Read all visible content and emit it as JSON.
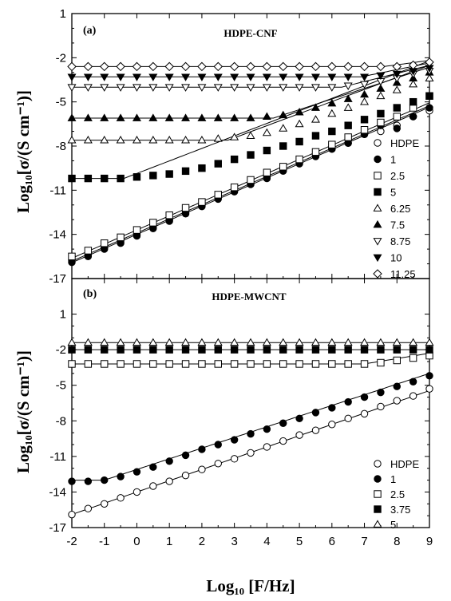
{
  "axes_common": {
    "xlabel": "Log₁₀ [F/Hz]",
    "ylabel": "Log₁₀[σ/(S cm⁻¹)]",
    "xlim": [
      -2,
      9
    ],
    "xticks": [
      -2,
      -1,
      0,
      1,
      2,
      3,
      4,
      5,
      6,
      7,
      8,
      9
    ]
  },
  "chart_data": [
    {
      "type": "scatter",
      "panel_label": "(a)",
      "title": "HDPE-CNF",
      "ylabel": "Log₁₀[σ/(S cm⁻¹)]",
      "ylim": [
        -17,
        1
      ],
      "yticks": [
        -17,
        -14,
        -11,
        -8,
        -5,
        -2,
        1
      ],
      "legend_position": "right",
      "fit_lines": true,
      "series": [
        {
          "name": "HDPE",
          "marker": "circle-open",
          "plateau": null,
          "onset": null,
          "slope": 0.96,
          "intercept": -13.9,
          "x": [
            -2,
            -1.5,
            -1,
            -0.5,
            0,
            0.5,
            1,
            1.5,
            2,
            2.5,
            3,
            3.5,
            4,
            4.5,
            5,
            5.5,
            6,
            6.5,
            7,
            7.5,
            8,
            8.5,
            9
          ],
          "y": [
            -15.8,
            -15.4,
            -14.9,
            -14.5,
            -14.0,
            -13.5,
            -13.0,
            -12.5,
            -12.0,
            -11.5,
            -11.0,
            -10.6,
            -10.1,
            -9.6,
            -9.1,
            -8.7,
            -8.2,
            -7.8,
            -7.2,
            -7.0,
            -6.6,
            -6.0,
            -5.6
          ]
        },
        {
          "name": "1",
          "marker": "circle-filled",
          "plateau": null,
          "onset": null,
          "slope": 0.96,
          "intercept": -14.0,
          "x": [
            -2,
            -1.5,
            -1,
            -0.5,
            0,
            0.5,
            1,
            1.5,
            2,
            2.5,
            3,
            3.5,
            4,
            4.5,
            5,
            5.5,
            6,
            6.5,
            7,
            7.5,
            8,
            8.5,
            9
          ],
          "y": [
            -15.9,
            -15.5,
            -15.0,
            -14.6,
            -14.1,
            -13.6,
            -13.1,
            -12.6,
            -12.1,
            -11.6,
            -11.1,
            -10.6,
            -10.2,
            -9.7,
            -9.2,
            -8.7,
            -8.2,
            -7.8,
            -7.2,
            -6.6,
            -6.8,
            -6.0,
            -5.4
          ]
        },
        {
          "name": "2.5",
          "marker": "square-open",
          "plateau": null,
          "onset": null,
          "slope": 0.96,
          "intercept": -13.7,
          "x": [
            -2,
            -1.5,
            -1,
            -0.5,
            0,
            0.5,
            1,
            1.5,
            2,
            2.5,
            3,
            3.5,
            4,
            4.5,
            5,
            5.5,
            6,
            6.5,
            7,
            7.5,
            8,
            8.5,
            9
          ],
          "y": [
            -15.5,
            -15.1,
            -14.6,
            -14.2,
            -13.7,
            -13.2,
            -12.7,
            -12.2,
            -11.8,
            -11.3,
            -10.8,
            -10.3,
            -9.8,
            -9.4,
            -8.9,
            -8.4,
            -7.9,
            -7.4,
            -6.9,
            -6.4,
            -6.0,
            -5.4,
            -4.6
          ]
        },
        {
          "name": "5",
          "marker": "square-filled",
          "plateau": -10.2,
          "onset": -0.4,
          "slope": 0.85,
          "intercept": null,
          "x": [
            -2,
            -1.5,
            -1,
            -0.5,
            0,
            0.5,
            1,
            1.5,
            2,
            2.5,
            3,
            3.5,
            4,
            4.5,
            5,
            5.5,
            6,
            6.5,
            7,
            7.5,
            8,
            8.5,
            9
          ],
          "y": [
            -10.2,
            -10.2,
            -10.2,
            -10.2,
            -10.1,
            -10.0,
            -9.9,
            -9.7,
            -9.5,
            -9.2,
            -8.9,
            -8.6,
            -8.3,
            -8.0,
            -7.7,
            -7.3,
            -7.0,
            -6.6,
            -6.2,
            -5.8,
            -5.4,
            -5.0,
            -4.6
          ]
        },
        {
          "name": "6.25",
          "marker": "triangle-open",
          "plateau": -7.6,
          "onset": 2.8,
          "slope": 0.82,
          "intercept": null,
          "x": [
            -2,
            -1.5,
            -1,
            -0.5,
            0,
            0.5,
            1,
            1.5,
            2,
            2.5,
            3,
            3.5,
            4,
            4.5,
            5,
            5.5,
            6,
            6.5,
            7,
            7.5,
            8,
            8.5,
            9
          ],
          "y": [
            -7.6,
            -7.6,
            -7.6,
            -7.6,
            -7.6,
            -7.6,
            -7.6,
            -7.6,
            -7.6,
            -7.5,
            -7.4,
            -7.3,
            -7.1,
            -6.8,
            -6.5,
            -6.2,
            -5.8,
            -5.4,
            -5.0,
            -4.6,
            -4.2,
            -3.8,
            -3.4
          ]
        },
        {
          "name": "7.5",
          "marker": "triangle-filled",
          "plateau": -6.1,
          "onset": 4.2,
          "slope": 0.72,
          "intercept": null,
          "x": [
            -2,
            -1.5,
            -1,
            -0.5,
            0,
            0.5,
            1,
            1.5,
            2,
            2.5,
            3,
            3.5,
            4,
            4.5,
            5,
            5.5,
            6,
            6.5,
            7,
            7.5,
            8,
            8.5,
            9
          ],
          "y": [
            -6.1,
            -6.1,
            -6.1,
            -6.1,
            -6.1,
            -6.1,
            -6.1,
            -6.1,
            -6.1,
            -6.1,
            -6.1,
            -6.1,
            -6.0,
            -5.9,
            -5.7,
            -5.4,
            -5.1,
            -4.8,
            -4.5,
            -4.1,
            -3.7,
            -3.4,
            -3.0
          ]
        },
        {
          "name": "8.75",
          "marker": "triangle-down-open",
          "plateau": -4.0,
          "onset": 6.3,
          "slope": 0.55,
          "intercept": null,
          "x": [
            -2,
            -1.5,
            -1,
            -0.5,
            0,
            0.5,
            1,
            1.5,
            2,
            2.5,
            3,
            3.5,
            4,
            4.5,
            5,
            5.5,
            6,
            6.5,
            7,
            7.5,
            8,
            8.5,
            9
          ],
          "y": [
            -4.0,
            -4.0,
            -4.0,
            -4.0,
            -4.0,
            -4.0,
            -4.0,
            -4.0,
            -4.0,
            -4.0,
            -4.0,
            -4.0,
            -4.0,
            -4.0,
            -4.0,
            -4.0,
            -4.0,
            -3.9,
            -3.8,
            -3.6,
            -3.4,
            -3.1,
            -2.9
          ]
        },
        {
          "name": "10",
          "marker": "triangle-down-filled",
          "plateau": -3.3,
          "onset": 6.9,
          "slope": 0.45,
          "intercept": null,
          "x": [
            -2,
            -1.5,
            -1,
            -0.5,
            0,
            0.5,
            1,
            1.5,
            2,
            2.5,
            3,
            3.5,
            4,
            4.5,
            5,
            5.5,
            6,
            6.5,
            7,
            7.5,
            8,
            8.5,
            9
          ],
          "y": [
            -3.3,
            -3.3,
            -3.3,
            -3.3,
            -3.3,
            -3.3,
            -3.3,
            -3.3,
            -3.3,
            -3.3,
            -3.3,
            -3.3,
            -3.3,
            -3.3,
            -3.3,
            -3.3,
            -3.3,
            -3.3,
            -3.3,
            -3.2,
            -3.1,
            -2.9,
            -2.7
          ]
        },
        {
          "name": "11.25",
          "marker": "diamond-open",
          "plateau": -2.6,
          "onset": 7.6,
          "slope": 0.3,
          "intercept": null,
          "x": [
            -2,
            -1.5,
            -1,
            -0.5,
            0,
            0.5,
            1,
            1.5,
            2,
            2.5,
            3,
            3.5,
            4,
            4.5,
            5,
            5.5,
            6,
            6.5,
            7,
            7.5,
            8,
            8.5,
            9
          ],
          "y": [
            -2.6,
            -2.6,
            -2.6,
            -2.6,
            -2.6,
            -2.6,
            -2.6,
            -2.6,
            -2.6,
            -2.6,
            -2.6,
            -2.6,
            -2.6,
            -2.6,
            -2.6,
            -2.6,
            -2.6,
            -2.6,
            -2.6,
            -2.6,
            -2.6,
            -2.5,
            -2.3
          ]
        }
      ]
    },
    {
      "type": "scatter",
      "panel_label": "(b)",
      "title": "HDPE-MWCNT",
      "ylabel": "Log₁₀[σ/(S cm⁻¹)]",
      "ylim": [
        -17,
        4
      ],
      "yticks": [
        -17,
        -14,
        -11,
        -8,
        -5,
        -2,
        1
      ],
      "legend_position": "bottom-right",
      "fit_lines": true,
      "series": [
        {
          "name": "HDPE",
          "marker": "circle-open",
          "plateau": null,
          "onset": null,
          "slope": 0.95,
          "intercept": -14.0,
          "x": [
            -2,
            -1.5,
            -1,
            -0.5,
            0,
            0.5,
            1,
            1.5,
            2,
            2.5,
            3,
            3.5,
            4,
            4.5,
            5,
            5.5,
            6,
            6.5,
            7,
            7.5,
            8,
            8.5,
            9
          ],
          "y": [
            -15.9,
            -15.4,
            -15.0,
            -14.5,
            -14.0,
            -13.5,
            -13.1,
            -12.6,
            -12.1,
            -11.6,
            -11.2,
            -10.7,
            -10.2,
            -9.7,
            -9.2,
            -8.8,
            -8.3,
            -7.8,
            -7.4,
            -6.8,
            -6.3,
            -5.9,
            -5.3
          ]
        },
        {
          "name": "1",
          "marker": "circle-filled",
          "plateau": -13.0,
          "onset": -1.0,
          "slope": 0.9,
          "intercept": null,
          "x": [
            -2,
            -1.5,
            -1,
            -0.5,
            0,
            0.5,
            1,
            1.5,
            2,
            2.5,
            3,
            3.5,
            4,
            4.5,
            5,
            5.5,
            6,
            6.5,
            7,
            7.5,
            8,
            8.5,
            9
          ],
          "y": [
            -13.1,
            -13.1,
            -13.0,
            -12.7,
            -12.3,
            -11.9,
            -11.4,
            -10.9,
            -10.4,
            -10.0,
            -9.6,
            -9.1,
            -8.7,
            -8.2,
            -7.8,
            -7.3,
            -6.9,
            -6.4,
            -6.0,
            -5.6,
            -5.1,
            -4.7,
            -4.2
          ]
        },
        {
          "name": "2.5",
          "marker": "square-open",
          "plateau": -3.2,
          "onset": 7.0,
          "slope": 0.45,
          "intercept": null,
          "x": [
            -2,
            -1.5,
            -1,
            -0.5,
            0,
            0.5,
            1,
            1.5,
            2,
            2.5,
            3,
            3.5,
            4,
            4.5,
            5,
            5.5,
            6,
            6.5,
            7,
            7.5,
            8,
            8.5,
            9
          ],
          "y": [
            -3.2,
            -3.2,
            -3.2,
            -3.2,
            -3.2,
            -3.2,
            -3.2,
            -3.2,
            -3.2,
            -3.2,
            -3.2,
            -3.2,
            -3.2,
            -3.2,
            -3.2,
            -3.2,
            -3.2,
            -3.2,
            -3.2,
            -3.1,
            -2.9,
            -2.7,
            -2.5
          ]
        },
        {
          "name": "3.75",
          "marker": "square-filled",
          "plateau": -2.0,
          "onset": null,
          "slope": 0,
          "intercept": null,
          "x": [
            -2,
            -1.5,
            -1,
            -0.5,
            0,
            0.5,
            1,
            1.5,
            2,
            2.5,
            3,
            3.5,
            4,
            4.5,
            5,
            5.5,
            6,
            6.5,
            7,
            7.5,
            8,
            8.5,
            9
          ],
          "y": [
            -2.0,
            -2.0,
            -2.0,
            -2.0,
            -2.0,
            -2.0,
            -2.0,
            -2.0,
            -2.0,
            -2.0,
            -2.0,
            -2.0,
            -2.0,
            -2.0,
            -2.0,
            -2.0,
            -2.0,
            -2.0,
            -2.0,
            -2.0,
            -2.0,
            -2.0,
            -2.0
          ]
        },
        {
          "name": "5",
          "marker": "triangle-open",
          "plateau": -1.4,
          "onset": null,
          "slope": 0,
          "intercept": null,
          "x": [
            -2,
            -1.5,
            -1,
            -0.5,
            0,
            0.5,
            1,
            1.5,
            2,
            2.5,
            3,
            3.5,
            4,
            4.5,
            5,
            5.5,
            6,
            6.5,
            7,
            7.5,
            8,
            8.5,
            9
          ],
          "y": [
            -1.4,
            -1.4,
            -1.4,
            -1.4,
            -1.4,
            -1.4,
            -1.4,
            -1.4,
            -1.4,
            -1.4,
            -1.4,
            -1.4,
            -1.4,
            -1.4,
            -1.4,
            -1.4,
            -1.4,
            -1.4,
            -1.4,
            -1.4,
            -1.4,
            -1.4,
            -1.4
          ]
        }
      ]
    }
  ]
}
